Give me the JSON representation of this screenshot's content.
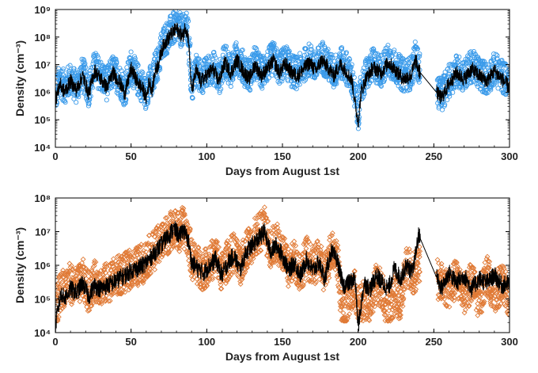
{
  "chart_data": [
    {
      "type": "scatter",
      "title": "",
      "xlabel": "Days from August 1st",
      "ylabel": "Density (cm⁻³)",
      "xlim": [
        0,
        300
      ],
      "ylim": [
        10000,
        1000000000
      ],
      "yscale": "log",
      "grid": false,
      "xticks": [
        "0",
        "50",
        "100",
        "150",
        "200",
        "250",
        "300"
      ],
      "yticks": [
        "10⁴",
        "10⁵",
        "10⁶",
        "10⁷",
        "10⁸",
        "10⁹"
      ],
      "colors": {
        "observed": "#3b9bea",
        "model": "#000000"
      },
      "series": [
        {
          "style": "circle-markers",
          "color": "#3b9bea",
          "x": [
            0,
            3,
            6,
            10,
            14,
            18,
            22,
            26,
            30,
            34,
            38,
            42,
            46,
            50,
            54,
            58,
            60,
            62,
            64,
            66,
            68,
            70,
            72,
            74,
            76,
            78,
            80,
            82,
            84,
            86,
            88,
            90,
            93,
            96,
            100,
            104,
            108,
            112,
            116,
            120,
            124,
            128,
            132,
            136,
            140,
            144,
            148,
            152,
            156,
            160,
            164,
            168,
            172,
            176,
            180,
            184,
            188,
            192,
            196,
            198,
            200,
            202,
            205,
            210,
            215,
            220,
            225,
            230,
            235,
            238,
            240,
            255,
            260,
            265,
            270,
            275,
            280,
            285,
            290,
            295,
            300
          ],
          "y": [
            700000,
            3000000,
            1500000,
            3000000,
            1500000,
            5000000,
            1200000,
            8000000,
            4000000,
            2000000,
            6000000,
            3000000,
            1200000,
            9000000,
            3000000,
            1500000,
            800000,
            3000000,
            1500000,
            8000000,
            12000000,
            40000000,
            80000000,
            100000000,
            150000000,
            200000000,
            250000000,
            200000000,
            150000000,
            300000000,
            100000000,
            1500000,
            8000000,
            3000000,
            5000000,
            9000000,
            3000000,
            15000000,
            6000000,
            20000000,
            8000000,
            4000000,
            12000000,
            5000000,
            9000000,
            18000000,
            7000000,
            14000000,
            6000000,
            5000000,
            9000000,
            16000000,
            7000000,
            20000000,
            10000000,
            5000000,
            12000000,
            8000000,
            3000000,
            600000,
            150000,
            1500000,
            4000000,
            10000000,
            6000000,
            15000000,
            8000000,
            4000000,
            5000000,
            20000000,
            8000000,
            800000,
            2500000,
            6000000,
            4000000,
            9000000,
            5000000,
            3000000,
            7000000,
            4000000,
            2000000
          ]
        },
        {
          "style": "line",
          "color": "#000000",
          "x": [
            0,
            3,
            6,
            10,
            14,
            18,
            22,
            26,
            30,
            34,
            38,
            42,
            46,
            50,
            54,
            58,
            60,
            62,
            64,
            66,
            68,
            70,
            72,
            74,
            76,
            78,
            80,
            82,
            84,
            86,
            88,
            90,
            93,
            96,
            100,
            104,
            108,
            112,
            116,
            120,
            124,
            128,
            132,
            136,
            140,
            144,
            148,
            152,
            156,
            160,
            164,
            168,
            172,
            176,
            180,
            184,
            188,
            192,
            196,
            198,
            200,
            202,
            205,
            210,
            215,
            220,
            225,
            230,
            235,
            238,
            240,
            255,
            260,
            265,
            270,
            275,
            280,
            285,
            290,
            295,
            300
          ],
          "y": [
            500000,
            2000000,
            1000000,
            2500000,
            1200000,
            4000000,
            900000,
            6000000,
            3000000,
            1500000,
            5000000,
            2500000,
            900000,
            7000000,
            2500000,
            1200000,
            600000,
            2500000,
            1200000,
            6000000,
            10000000,
            30000000,
            60000000,
            80000000,
            120000000,
            150000000,
            200000000,
            150000000,
            100000000,
            250000000,
            80000000,
            1000000,
            6000000,
            2500000,
            4000000,
            7000000,
            2500000,
            12000000,
            5000000,
            15000000,
            6000000,
            3000000,
            10000000,
            4000000,
            7000000,
            14000000,
            5000000,
            11000000,
            5000000,
            4000000,
            7000000,
            12000000,
            6000000,
            15000000,
            8000000,
            4000000,
            10000000,
            6000000,
            2500000,
            400000,
            80000,
            1000000,
            3000000,
            8000000,
            5000000,
            12000000,
            6000000,
            3000000,
            4000000,
            15000000,
            6000000,
            600000,
            2000000,
            5000000,
            3000000,
            7000000,
            4000000,
            2500000,
            6000000,
            3000000,
            1500000
          ]
        }
      ]
    },
    {
      "type": "scatter",
      "title": "",
      "xlabel": "Days from August 1st",
      "ylabel": "Density (cm⁻³)",
      "xlim": [
        0,
        300
      ],
      "ylim": [
        10000,
        100000000
      ],
      "yscale": "log",
      "grid": false,
      "xticks": [
        "0",
        "50",
        "100",
        "150",
        "200",
        "250",
        "300"
      ],
      "yticks": [
        "10⁴",
        "10⁵",
        "10⁶",
        "10⁷",
        "10⁸"
      ],
      "colors": {
        "observed": "#e07a36",
        "model": "#000000"
      },
      "series": [
        {
          "style": "diamond-markers",
          "color": "#e07a36",
          "x": [
            0,
            3,
            6,
            10,
            14,
            18,
            22,
            26,
            30,
            34,
            38,
            42,
            46,
            50,
            54,
            58,
            62,
            66,
            70,
            74,
            76,
            78,
            80,
            82,
            84,
            86,
            88,
            90,
            94,
            98,
            102,
            106,
            110,
            114,
            118,
            122,
            126,
            130,
            134,
            138,
            142,
            146,
            150,
            154,
            158,
            162,
            166,
            170,
            174,
            178,
            182,
            186,
            190,
            194,
            198,
            200,
            204,
            208,
            212,
            216,
            220,
            224,
            228,
            232,
            236,
            240,
            255,
            260,
            265,
            270,
            275,
            280,
            285,
            290,
            295,
            300
          ],
          "y": [
            40000,
            150000,
            250000,
            300000,
            200000,
            400000,
            150000,
            350000,
            250000,
            300000,
            400000,
            500000,
            600000,
            800000,
            900000,
            1200000,
            2000000,
            3000000,
            5000000,
            8000000,
            10000000,
            15000000,
            12000000,
            8000000,
            14000000,
            10000000,
            6000000,
            1500000,
            1000000,
            700000,
            1200000,
            2000000,
            600000,
            1500000,
            2500000,
            800000,
            3000000,
            5000000,
            8000000,
            15000000,
            3000000,
            5000000,
            2500000,
            800000,
            1500000,
            600000,
            2000000,
            800000,
            1500000,
            500000,
            3000000,
            2000000,
            30000,
            100000,
            200000,
            50000,
            100000,
            60000,
            300000,
            200000,
            40000,
            150000,
            80000,
            1200000,
            500000,
            1000000,
            300000,
            200000,
            400000,
            150000,
            300000,
            100000,
            500000,
            150000,
            300000,
            100000
          ],
          "floor_values": true
        },
        {
          "style": "line",
          "color": "#000000",
          "x": [
            0,
            2,
            4,
            6,
            10,
            14,
            18,
            22,
            26,
            30,
            34,
            38,
            42,
            46,
            50,
            54,
            58,
            62,
            66,
            70,
            74,
            76,
            78,
            80,
            82,
            84,
            86,
            88,
            90,
            94,
            98,
            102,
            106,
            110,
            114,
            118,
            122,
            126,
            130,
            134,
            138,
            142,
            146,
            150,
            154,
            158,
            162,
            166,
            170,
            174,
            178,
            182,
            186,
            190,
            194,
            198,
            200,
            204,
            208,
            212,
            216,
            220,
            224,
            228,
            232,
            236,
            240,
            255,
            260,
            265,
            270,
            275,
            280,
            285,
            290,
            295,
            300
          ],
          "y": [
            15000,
            60000,
            150000,
            100000,
            200000,
            150000,
            300000,
            120000,
            250000,
            200000,
            250000,
            300000,
            400000,
            500000,
            700000,
            800000,
            1000000,
            1500000,
            2500000,
            4000000,
            7000000,
            9000000,
            12000000,
            10000000,
            7000000,
            12000000,
            8000000,
            5000000,
            1200000,
            800000,
            600000,
            1000000,
            1500000,
            500000,
            1200000,
            2000000,
            700000,
            2500000,
            4000000,
            6000000,
            10000000,
            2500000,
            4000000,
            2000000,
            700000,
            1200000,
            500000,
            1500000,
            700000,
            1200000,
            400000,
            2500000,
            1500000,
            250000,
            300000,
            400000,
            15000,
            300000,
            200000,
            500000,
            300000,
            200000,
            800000,
            400000,
            1000000,
            600000,
            8000000,
            200000,
            600000,
            300000,
            500000,
            200000,
            400000,
            300000,
            500000,
            250000,
            300000
          ]
        }
      ]
    }
  ]
}
